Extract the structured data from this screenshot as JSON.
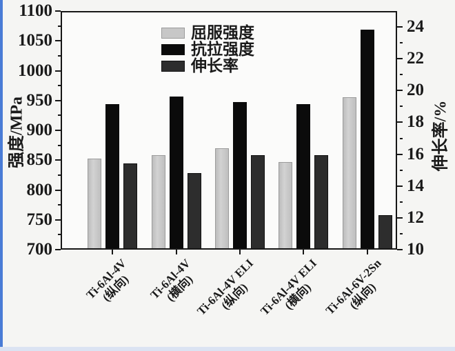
{
  "page": {
    "background_color": "#f5f5f3",
    "left_edge_strip_color": "#4a7cd6",
    "bottom_edge_strip_color": "#dbe3f2"
  },
  "chart_data": {
    "type": "bar",
    "title": "",
    "left_axis": {
      "label": "强度/MPa",
      "min": 700,
      "max": 1100,
      "major_tick_step": 50,
      "minor_tick_step": 25,
      "ticks": [
        700,
        750,
        800,
        850,
        900,
        950,
        1000,
        1050,
        1100
      ]
    },
    "right_axis": {
      "label": "伸长率/%",
      "min": 10,
      "max": 25,
      "major_tick_step": 2,
      "minor_tick_step": 1,
      "ticks": [
        10,
        12,
        14,
        16,
        18,
        20,
        22,
        24
      ]
    },
    "categories": [
      {
        "line1": "Ti-6Al-4V",
        "line2": "(纵向)"
      },
      {
        "line1": "Ti-6Al-4V",
        "line2": "(横向)"
      },
      {
        "line1": "Ti-6Al-4V ELI",
        "line2": "(纵向)"
      },
      {
        "line1": "Ti-6Al-4V ELI",
        "line2": "(横向)"
      },
      {
        "line1": "Ti-6Al-6V-2Sn",
        "line2": "(纵向)"
      }
    ],
    "series": [
      {
        "name": "屈服强度",
        "axis": "left",
        "color": "#c7c7c7",
        "values": [
          852,
          858,
          870,
          846,
          956
        ]
      },
      {
        "name": "抗拉强度",
        "axis": "left",
        "color": "#0b0b0b",
        "values": [
          944,
          957,
          948,
          944,
          1071
        ]
      },
      {
        "name": "伸长率",
        "axis": "right",
        "color": "#2d2d2d",
        "values": [
          15.4,
          14.8,
          15.9,
          15.9,
          12.1
        ]
      }
    ],
    "legend": {
      "entries": [
        "屈服强度",
        "抗拉强度",
        "伸长率"
      ],
      "position": "inside-top-center-left"
    },
    "grid": "off"
  }
}
